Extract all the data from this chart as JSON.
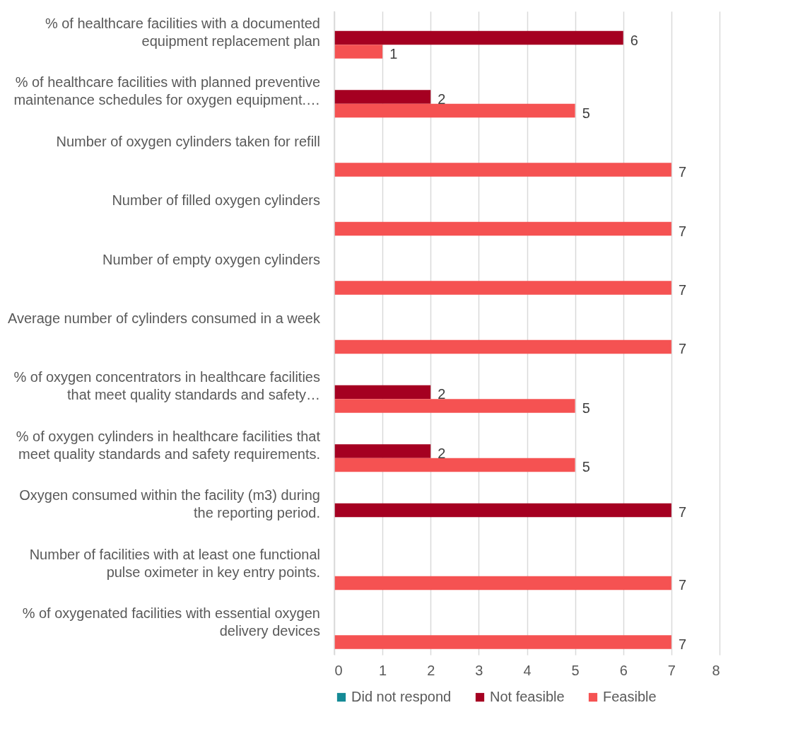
{
  "chart_data": {
    "type": "bar",
    "orientation": "horizontal",
    "categories": [
      "% of healthcare facilities with a documented\nequipment replacement plan",
      "% of healthcare facilities with planned preventive\nmaintenance schedules for oxygen equipment.…",
      "Number of oxygen cylinders taken for refill",
      "Number of filled oxygen cylinders",
      "Number of empty oxygen cylinders",
      "Average number of cylinders consumed in a week",
      "% of oxygen concentrators in healthcare facilities\nthat meet quality standards and safety…",
      "% of oxygen cylinders in healthcare facilities that\nmeet quality standards and safety requirements.",
      "Oxygen consumed within the facility (m3) during\nthe reporting period.",
      "Number of facilities with at least one functional\npulse oximeter in key entry points.",
      "% of oxygenated facilities with essential oxygen\ndelivery devices"
    ],
    "series": [
      {
        "name": "Did not respond",
        "color": "#158a96",
        "values": [
          null,
          null,
          null,
          null,
          null,
          null,
          null,
          null,
          null,
          null,
          null
        ]
      },
      {
        "name": "Not feasible",
        "color": "#a50021",
        "values": [
          6,
          2,
          null,
          null,
          null,
          null,
          2,
          2,
          7,
          null,
          null
        ]
      },
      {
        "name": "Feasible",
        "color": "#f55252",
        "values": [
          1,
          5,
          7,
          7,
          7,
          7,
          5,
          5,
          null,
          7,
          7
        ]
      }
    ],
    "xlim": [
      0,
      8
    ],
    "xticks": [
      0,
      1,
      2,
      3,
      4,
      5,
      6,
      7,
      8
    ],
    "grid": "x",
    "legend": "bottom",
    "data_labels": true
  }
}
